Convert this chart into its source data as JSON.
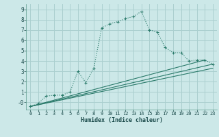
{
  "xlabel": "Humidex (Indice chaleur)",
  "bg_color": "#cce8e8",
  "grid_color": "#aacfcf",
  "line_color": "#2a7a6a",
  "xlim": [
    -0.5,
    23.5
  ],
  "ylim": [
    -0.7,
    9.5
  ],
  "xticks": [
    0,
    1,
    2,
    3,
    4,
    5,
    6,
    7,
    8,
    9,
    10,
    11,
    12,
    13,
    14,
    15,
    16,
    17,
    18,
    19,
    20,
    21,
    22,
    23
  ],
  "yticks": [
    0,
    1,
    2,
    3,
    4,
    5,
    6,
    7,
    8,
    9
  ],
  "series": [
    {
      "x": [
        0,
        1,
        2,
        3,
        4,
        5,
        6,
        7,
        8,
        9,
        10,
        11,
        12,
        13,
        14,
        15,
        16,
        17,
        18,
        19,
        20,
        21,
        22,
        23
      ],
      "y": [
        -0.4,
        -0.1,
        0.6,
        0.7,
        0.7,
        1.0,
        3.0,
        1.9,
        3.3,
        7.2,
        7.6,
        7.8,
        8.1,
        8.3,
        8.8,
        7.0,
        6.8,
        5.3,
        4.8,
        4.8,
        4.0,
        4.1,
        4.1,
        3.7
      ],
      "marker": true,
      "linestyle": "dotted"
    },
    {
      "x": [
        0,
        22
      ],
      "y": [
        -0.4,
        4.1
      ],
      "marker": false,
      "linestyle": "solid"
    },
    {
      "x": [
        0,
        23
      ],
      "y": [
        -0.4,
        3.7
      ],
      "marker": false,
      "linestyle": "solid"
    },
    {
      "x": [
        0,
        23
      ],
      "y": [
        -0.4,
        3.3
      ],
      "marker": false,
      "linestyle": "solid"
    }
  ]
}
